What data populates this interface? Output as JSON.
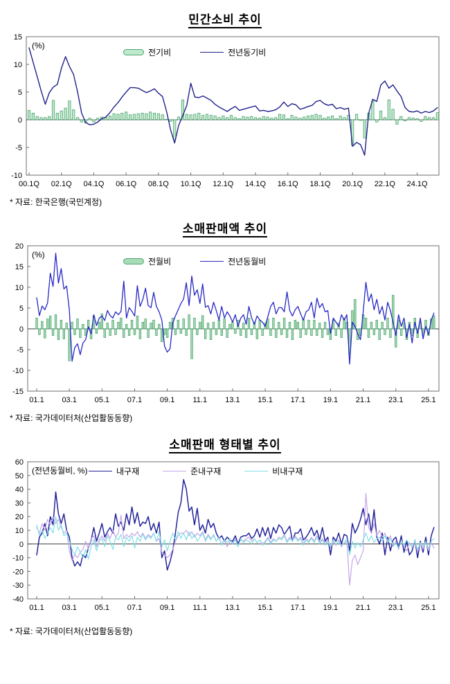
{
  "page": {
    "background": "#ffffff",
    "text_color": "#000000"
  },
  "chart_data": [
    {
      "type": "bar+line",
      "title": "민간소비 추이",
      "annotation": "(%)",
      "source": "* 자료: 한국은행(국민계정)",
      "x_axis": {
        "tick_labels": [
          "00.1Q",
          "02.1Q",
          "04.1Q",
          "06.1Q",
          "08.1Q",
          "10.1Q",
          "12.1Q",
          "14.1Q",
          "16.1Q",
          "18.1Q",
          "20.1Q",
          "22.1Q",
          "24.1Q"
        ],
        "tick_every": 8,
        "x_start": "2000Q1",
        "x_interval": "quarter"
      },
      "y_axis": {
        "min": -10,
        "max": 15,
        "ticks": [
          15,
          10,
          5,
          0,
          -5,
          -10
        ]
      },
      "legend_position": "top-center",
      "series": [
        {
          "name": "전기비",
          "type": "bar",
          "fill": "#bfe9cc",
          "stroke": "#4fa570",
          "values": [
            1.7,
            1.2,
            0.6,
            0.4,
            0.4,
            0.6,
            3.5,
            1.2,
            1.6,
            2.1,
            3.4,
            1.8,
            0.4,
            -0.4,
            -0.6,
            0.3,
            -0.4,
            0.3,
            0.5,
            0.4,
            0.7,
            1.1,
            1.0,
            1.2,
            1.4,
            0.9,
            1.0,
            1.1,
            1.2,
            1.1,
            1.4,
            1.2,
            1.1,
            0.9,
            0.1,
            -0.3,
            -3.6,
            0.5,
            3.6,
            1.0,
            0.9,
            1.0,
            1.2,
            0.8,
            1.0,
            0.8,
            0.7,
            0.4,
            0.7,
            0.4,
            0.8,
            0.4,
            0.2,
            0.6,
            0.5,
            0.6,
            0.4,
            0.3,
            0.6,
            0.5,
            0.3,
            0.4,
            1.0,
            0.9,
            0.2,
            0.8,
            0.5,
            0.3,
            0.5,
            0.7,
            0.8,
            1.0,
            0.8,
            0.3,
            0.5,
            0.7,
            0.2,
            0.7,
            0.4,
            0.8,
            -4.6,
            1.0,
            -0.1,
            -3.3,
            1.2,
            3.4,
            -0.4,
            1.6,
            0.4,
            3.6,
            1.9,
            -0.8,
            0.6,
            -0.2,
            0.4,
            0.3,
            0.2,
            -0.3,
            0.6,
            0.4,
            0.4,
            1.3
          ]
        },
        {
          "name": "전년동기비",
          "type": "line",
          "stroke": "#20208c",
          "width": 1.4,
          "values": [
            13.0,
            10.4,
            7.8,
            5.2,
            2.8,
            4.9,
            5.9,
            6.4,
            9.3,
            11.4,
            9.6,
            8.2,
            5.0,
            1.2,
            -0.5,
            -0.9,
            -0.8,
            -0.4,
            0.2,
            0.5,
            1.3,
            2.3,
            3.1,
            4.1,
            5.0,
            5.8,
            5.8,
            5.7,
            5.3,
            4.9,
            5.2,
            5.6,
            4.8,
            4.2,
            1.5,
            -1.8,
            -4.2,
            -1.0,
            0.7,
            2.6,
            6.6,
            4.1,
            4.0,
            4.3,
            3.9,
            3.5,
            2.8,
            2.3,
            1.9,
            1.5,
            2.0,
            2.4,
            1.7,
            1.9,
            2.1,
            2.3,
            2.5,
            1.6,
            1.7,
            1.5,
            1.6,
            1.8,
            2.3,
            3.2,
            2.4,
            2.9,
            2.7,
            1.9,
            2.1,
            2.4,
            2.6,
            3.3,
            3.5,
            2.9,
            2.6,
            2.8,
            2.0,
            2.2,
            1.9,
            2.1,
            -4.8,
            -4.1,
            -4.5,
            -6.4,
            1.2,
            3.7,
            3.3,
            6.3,
            7.0,
            5.7,
            6.3,
            5.2,
            4.2,
            2.2,
            1.5,
            1.4,
            1.6,
            1.2,
            1.5,
            1.3,
            1.6,
            2.2
          ]
        }
      ]
    },
    {
      "type": "bar+line",
      "title": "소매판매액 추이",
      "annotation": "(%)",
      "source": "* 자료: 국가데이터처(산업활동동향)",
      "x_axis": {
        "tick_labels": [
          "01.1",
          "03.1",
          "05.1",
          "07.1",
          "09.1",
          "11.1",
          "13.1",
          "15.1",
          "17.1",
          "19.1",
          "21.1",
          "23.1",
          "25.1"
        ],
        "tick_every": 12,
        "x_start": "2001.01",
        "x_interval_months": 2
      },
      "y_axis": {
        "min": -15,
        "max": 20,
        "ticks": [
          20,
          15,
          10,
          5,
          0,
          -5,
          -10,
          -15
        ]
      },
      "legend_position": "top-center",
      "series": [
        {
          "name": "전월비",
          "type": "bar",
          "fill": "#a8dcb6",
          "stroke": "#4fa570",
          "values": [
            2.6,
            -1.4,
            1.8,
            -2.2,
            2.4,
            3.1,
            -1.6,
            3.4,
            -2.6,
            2.1,
            -2.4,
            1.4,
            -7.7,
            1.6,
            -1.4,
            2.4,
            -2.1,
            1.1,
            -1.6,
            2.1,
            -2.4,
            3.1,
            -1.1,
            1.6,
            3.6,
            -2.1,
            1.4,
            -1.6,
            2.1,
            -1.4,
            1.6,
            2.6,
            -2.1,
            1.1,
            -1.6,
            2.1,
            -1.4,
            3.1,
            -2.4,
            1.6,
            2.4,
            -2.1,
            1.4,
            2.1,
            -1.6,
            1.1,
            -3.1,
            -1.4,
            -2.1,
            1.6,
            2.6,
            -1.4,
            2.1,
            -1.1,
            2.4,
            -1.6,
            3.4,
            -7.2,
            2.6,
            -1.4,
            1.6,
            3.2,
            -2.4,
            1.4,
            -2.6,
            1.6,
            -1.4,
            2.1,
            -1.6,
            2.4,
            -2.1,
            1.1,
            1.6,
            -1.1,
            2.1,
            -1.6,
            1.4,
            -2.1,
            2.6,
            -1.4,
            1.6,
            -2.4,
            2.1,
            -1.6,
            1.4,
            2.4,
            -1.6,
            2.6,
            -2.1,
            1.6,
            -1.4,
            2.6,
            -2.1,
            1.6,
            -2.6,
            2.1,
            1.6,
            -2.1,
            2.4,
            -1.4,
            2.1,
            -1.6,
            2.1,
            -1.6,
            1.4,
            -2.1,
            1.6,
            -1.4,
            -2.6,
            2.1,
            -1.6,
            1.4,
            -2.1,
            2.6,
            1.6,
            -6.1,
            4.4,
            7.1,
            -2.6,
            -1.6,
            3.4,
            2.6,
            -2.1,
            1.6,
            -1.4,
            2.1,
            -2.6,
            1.6,
            -1.4,
            2.6,
            -2.1,
            8.1,
            -4.4,
            2.1,
            -1.6,
            1.4,
            -2.6,
            1.6,
            -1.6,
            2.6,
            -2.1,
            1.6,
            -1.4,
            2.1,
            -1.6,
            2.4,
            3.2
          ]
        },
        {
          "name": "전년동월비",
          "type": "line",
          "stroke": "#2727c4",
          "width": 1.3,
          "values": [
            7.5,
            3.2,
            5.5,
            4.6,
            6.2,
            13.4,
            10.2,
            18.2,
            11.0,
            14.5,
            9.6,
            10.3,
            4.5,
            -7.8,
            -4.5,
            -3.6,
            -6.2,
            -3.4,
            -2.6,
            0.5,
            -1.2,
            3.4,
            0.8,
            2.6,
            3.1,
            2.0,
            4.4,
            3.2,
            2.6,
            4.1,
            3.4,
            4.2,
            11.5,
            2.6,
            5.1,
            4.2,
            3.1,
            10.4,
            5.4,
            7.1,
            9.8,
            5.6,
            5.1,
            8.8,
            5.4,
            4.1,
            2.1,
            -4.2,
            -5.6,
            -4.8,
            1.4,
            3.1,
            4.6,
            6.1,
            7.2,
            11.1,
            5.6,
            12.7,
            8.1,
            9.4,
            6.1,
            10.8,
            5.2,
            5.6,
            3.6,
            6.4,
            4.4,
            2.1,
            5.4,
            2.6,
            4.1,
            3.1,
            1.6,
            3.4,
            0.6,
            2.6,
            3.4,
            1.1,
            5.4,
            2.6,
            1.1,
            3.1,
            2.1,
            1.6,
            0.6,
            3.1,
            5.4,
            6.4,
            3.6,
            5.1,
            5.1,
            4.1,
            8.9,
            4.4,
            3.1,
            4.6,
            5.4,
            3.6,
            2.1,
            4.1,
            4.6,
            6.4,
            2.6,
            7.4,
            5.1,
            6.1,
            4.1,
            4.4,
            -1.1,
            2.6,
            1.6,
            0.6,
            3.4,
            2.1,
            3.4,
            -8.5,
            1.6,
            0.6,
            -1.2,
            -2.6,
            4.1,
            11.2,
            6.6,
            8.4,
            4.6,
            7.1,
            3.6,
            5.4,
            2.1,
            6.4,
            4.4,
            1.6,
            -1.6,
            3.4,
            0.6,
            2.6,
            -2.1,
            1.1,
            -3.4,
            1.6,
            -1.1,
            2.6,
            -2.4,
            0.6,
            -1.4,
            2.1,
            3.8
          ]
        }
      ]
    },
    {
      "type": "line",
      "title": "소매판매 형태별 추이",
      "annotation": "(전년동월비, %)",
      "source": "* 자료: 국가데이터처(산업활동동향)",
      "x_axis": {
        "tick_labels": [
          "01.1",
          "03.1",
          "05.1",
          "07.1",
          "09.1",
          "11.1",
          "13.1",
          "15.1",
          "17.1",
          "19.1",
          "21.1",
          "23.1",
          "25.1"
        ],
        "tick_every": 12,
        "x_start": "2001.01",
        "x_interval_months": 2
      },
      "y_axis": {
        "min": -40,
        "max": 60,
        "ticks": [
          60,
          50,
          40,
          30,
          20,
          10,
          0,
          -10,
          -20,
          -30,
          -40
        ]
      },
      "legend_position": "top-center",
      "series": [
        {
          "name": "내구재",
          "type": "line",
          "stroke": "#23239b",
          "width": 1.5,
          "values": [
            -8,
            5,
            8,
            15,
            6,
            20,
            14,
            38,
            22,
            15,
            22,
            10,
            5,
            -10,
            -16,
            -13,
            -16,
            -8,
            -10,
            -3,
            3,
            12,
            2,
            8,
            15,
            5,
            9,
            12,
            8,
            22,
            13,
            16,
            10,
            22,
            14,
            27,
            15,
            23,
            13,
            16,
            15,
            20,
            10,
            15,
            8,
            16,
            -10,
            -5,
            -19,
            -13,
            -5,
            8,
            23,
            30,
            47,
            40,
            24,
            27,
            14,
            26,
            10,
            14,
            8,
            18,
            12,
            15,
            8,
            4,
            6,
            2,
            5,
            3,
            2,
            6,
            0,
            5,
            6,
            6,
            8,
            4,
            6,
            11,
            5,
            12,
            6,
            12,
            4,
            12,
            8,
            14,
            12,
            7,
            10,
            13,
            2,
            8,
            8,
            11,
            3,
            5,
            8,
            12,
            6,
            10,
            3,
            12,
            2,
            5,
            -8,
            5,
            2,
            8,
            0,
            7,
            6,
            -5,
            15,
            8,
            12,
            18,
            26,
            14,
            22,
            8,
            25,
            5,
            0,
            8,
            -8,
            5,
            -5,
            3,
            5,
            -3,
            6,
            -6,
            2,
            -8,
            -5,
            3,
            -10,
            2,
            -6,
            5,
            -8,
            6,
            12
          ]
        },
        {
          "name": "준내구재",
          "type": "line",
          "stroke": "#c4a7e7",
          "width": 1.2,
          "values": [
            12,
            8,
            15,
            10,
            18,
            14,
            20,
            15,
            18,
            12,
            8,
            10,
            -5,
            -12,
            -8,
            -10,
            -6,
            -4,
            2,
            -4,
            4,
            6,
            -2,
            3,
            6,
            2,
            8,
            4,
            10,
            5,
            8,
            21,
            4,
            7,
            5,
            8,
            6,
            9,
            5,
            8,
            4,
            7,
            5,
            8,
            2,
            4,
            -6,
            -8,
            -10,
            -8,
            -4,
            2,
            6,
            8,
            8,
            10,
            6,
            9,
            5,
            8,
            6,
            9,
            3,
            7,
            4,
            6,
            2,
            5,
            0,
            3,
            -2,
            2,
            1,
            4,
            -1,
            3,
            2,
            4,
            5,
            2,
            4,
            1,
            3,
            0,
            2,
            5,
            1,
            4,
            2,
            5,
            4,
            7,
            2,
            5,
            3,
            6,
            3,
            5,
            0,
            4,
            2,
            5,
            2,
            6,
            1,
            4,
            0,
            3,
            -3,
            2,
            -1,
            3,
            -2,
            1,
            2,
            -30,
            -12,
            -8,
            -15,
            -10,
            -5,
            37,
            12,
            8,
            15,
            6,
            10,
            5,
            8,
            2,
            6,
            -2,
            2,
            -4,
            3,
            -2,
            -5,
            1,
            -3,
            2,
            -6,
            1,
            -4,
            2,
            -5,
            1,
            -3
          ]
        },
        {
          "name": "비내구재",
          "type": "line",
          "stroke": "#82e0e6",
          "width": 1.2,
          "values": [
            14,
            6,
            10,
            4,
            8,
            12,
            8,
            20,
            10,
            14,
            6,
            8,
            2,
            -4,
            -8,
            -2,
            -6,
            -10,
            -4,
            -11,
            -2,
            3,
            -5,
            2,
            4,
            -2,
            6,
            2,
            -4,
            5,
            3,
            7,
            -2,
            5,
            2,
            6,
            -3,
            5,
            2,
            7,
            3,
            6,
            4,
            8,
            2,
            9,
            -2,
            3,
            -5,
            2,
            8,
            3,
            9,
            4,
            8,
            3,
            9,
            4,
            7,
            2,
            5,
            8,
            2,
            6,
            3,
            7,
            2,
            5,
            -1,
            3,
            1,
            4,
            0,
            3,
            -2,
            4,
            1,
            3,
            2,
            0,
            4,
            1,
            3,
            -1,
            1,
            4,
            0,
            3,
            2,
            4,
            3,
            6,
            1,
            4,
            2,
            5,
            2,
            4,
            -1,
            3,
            1,
            4,
            1,
            5,
            0,
            3,
            -1,
            2,
            -2,
            3,
            0,
            2,
            -1,
            1,
            4,
            -8,
            2,
            -3,
            1,
            -2,
            3,
            8,
            2,
            6,
            1,
            4,
            5,
            2,
            6,
            1,
            4,
            -1,
            1,
            -3,
            2,
            -1,
            3,
            0,
            -2,
            3,
            -4,
            1,
            -2,
            2,
            -3,
            2,
            4
          ]
        }
      ]
    }
  ]
}
